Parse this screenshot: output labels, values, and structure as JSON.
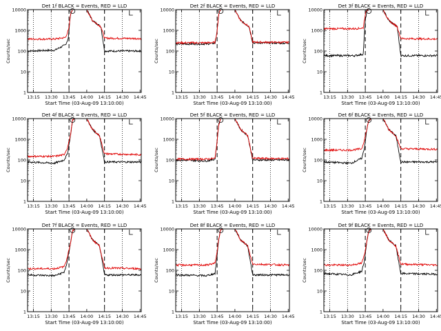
{
  "colors": {
    "events": "#000000",
    "lld": "#e00000",
    "background": "#ffffff"
  },
  "common": {
    "xlabel": "Start Time (03-Aug-09 13:10:00)",
    "ylabel": "Counts/sec",
    "xticks": [
      "13:15",
      "13:30",
      "13:45",
      "14:00",
      "14:15",
      "14:30",
      "14:45"
    ],
    "yticks": [
      "1",
      "10",
      "100",
      "1000",
      "10000"
    ]
  },
  "chart_data": [
    {
      "type": "line",
      "title": "Det 1f BLACK = Events, RED = LLD",
      "xlim": [
        13.167,
        14.767
      ],
      "ylim": [
        1,
        10000
      ],
      "yscale": "log",
      "x_vlines_dotted": [
        13.25,
        13.5,
        14.5
      ],
      "x_vlines_dashed": [
        13.75,
        14.25
      ],
      "series": [
        {
          "name": "Events",
          "color": "black",
          "x": [
            13.17,
            13.55,
            13.7,
            13.74,
            13.75,
            13.77,
            13.8,
            13.83,
            14.0,
            14.08,
            14.2,
            14.25,
            14.76
          ],
          "y": [
            100,
            110,
            200,
            400,
            1000,
            6000,
            10000,
            10000,
            10000,
            3000,
            1500,
            100,
            100
          ]
        },
        {
          "name": "LLD",
          "color": "red",
          "x": [
            13.17,
            13.55,
            13.7,
            13.75,
            13.77,
            13.8,
            13.83,
            14.0,
            14.08,
            14.2,
            14.25,
            14.76
          ],
          "y": [
            380,
            380,
            450,
            1200,
            6000,
            10000,
            10000,
            10000,
            3000,
            1500,
            420,
            400
          ]
        }
      ]
    },
    {
      "type": "line",
      "title": "Det 2f BLACK = Events, RED = LLD",
      "xlim": [
        13.167,
        14.767
      ],
      "ylim": [
        1,
        10000
      ],
      "yscale": "log",
      "x_vlines_dotted": [
        13.25,
        13.5,
        14.5
      ],
      "x_vlines_dashed": [
        13.75,
        14.25
      ],
      "series": [
        {
          "name": "Events",
          "color": "black",
          "x": [
            13.17,
            13.6,
            13.72,
            13.75,
            13.77,
            13.8,
            13.83,
            14.0,
            14.08,
            14.2,
            14.25,
            14.76
          ],
          "y": [
            220,
            220,
            240,
            900,
            6000,
            10000,
            10000,
            10000,
            3000,
            1500,
            250,
            240
          ]
        },
        {
          "name": "LLD",
          "color": "red",
          "x": [
            13.17,
            13.6,
            13.72,
            13.75,
            13.77,
            13.8,
            13.83,
            14.0,
            14.08,
            14.2,
            14.25,
            14.76
          ],
          "y": [
            250,
            250,
            260,
            900,
            6000,
            10000,
            10000,
            10000,
            3000,
            1500,
            270,
            260
          ]
        }
      ]
    },
    {
      "type": "line",
      "title": "Det 3f BLACK = Events, RED = LLD",
      "xlim": [
        13.167,
        14.767
      ],
      "ylim": [
        1,
        10000
      ],
      "yscale": "log",
      "x_vlines_dotted": [
        13.25,
        13.5,
        14.5
      ],
      "x_vlines_dashed": [
        13.75,
        14.25
      ],
      "series": [
        {
          "name": "Events",
          "color": "black",
          "x": [
            13.17,
            13.6,
            13.72,
            13.75,
            13.77,
            13.8,
            13.83,
            14.0,
            14.08,
            14.2,
            14.25,
            14.76
          ],
          "y": [
            60,
            60,
            70,
            3000,
            8000,
            10000,
            10000,
            10000,
            3000,
            1500,
            60,
            60
          ]
        },
        {
          "name": "LLD",
          "color": "red",
          "x": [
            13.17,
            13.6,
            13.72,
            13.75,
            13.77,
            13.8,
            13.83,
            14.0,
            14.08,
            14.2,
            14.25,
            14.76
          ],
          "y": [
            1200,
            1200,
            1300,
            6000,
            9000,
            10000,
            10000,
            10000,
            3000,
            1500,
            400,
            380
          ]
        }
      ]
    },
    {
      "type": "line",
      "title": "Det 4f BLACK = Events, RED = LLD",
      "xlim": [
        13.167,
        14.767
      ],
      "ylim": [
        1,
        10000
      ],
      "yscale": "log",
      "x_vlines_dotted": [
        13.25,
        13.5,
        14.5
      ],
      "x_vlines_dashed": [
        13.75,
        14.25
      ],
      "series": [
        {
          "name": "Events",
          "color": "black",
          "x": [
            13.17,
            13.55,
            13.68,
            13.73,
            13.77,
            13.8,
            13.83,
            14.0,
            14.08,
            14.18,
            14.25,
            14.76
          ],
          "y": [
            80,
            70,
            100,
            200,
            1500,
            8000,
            10000,
            10000,
            3000,
            1500,
            80,
            80
          ]
        },
        {
          "name": "LLD",
          "color": "red",
          "x": [
            13.17,
            13.55,
            13.68,
            13.73,
            13.77,
            13.8,
            13.83,
            14.0,
            14.08,
            14.18,
            14.25,
            14.76
          ],
          "y": [
            150,
            150,
            180,
            400,
            1500,
            8000,
            10000,
            10000,
            3000,
            1500,
            200,
            180
          ]
        }
      ]
    },
    {
      "type": "line",
      "title": "Det 5f BLACK = Events, RED = LLD",
      "xlim": [
        13.167,
        14.767
      ],
      "ylim": [
        1,
        10000
      ],
      "yscale": "log",
      "x_vlines_dotted": [
        13.25,
        13.5,
        14.5
      ],
      "x_vlines_dashed": [
        13.75,
        14.25
      ],
      "series": [
        {
          "name": "Events",
          "color": "black",
          "x": [
            13.17,
            13.6,
            13.72,
            13.75,
            13.77,
            13.8,
            13.83,
            14.0,
            14.08,
            14.18,
            14.25,
            14.76
          ],
          "y": [
            100,
            90,
            110,
            800,
            5000,
            10000,
            10000,
            10000,
            3000,
            1500,
            100,
            100
          ]
        },
        {
          "name": "LLD",
          "color": "red",
          "x": [
            13.17,
            13.6,
            13.72,
            13.75,
            13.77,
            13.8,
            13.83,
            14.0,
            14.08,
            14.18,
            14.25,
            14.76
          ],
          "y": [
            110,
            110,
            120,
            800,
            5000,
            10000,
            10000,
            10000,
            3000,
            1500,
            120,
            115
          ]
        }
      ]
    },
    {
      "type": "line",
      "title": "Det 6f BLACK = Events, RED = LLD",
      "xlim": [
        13.167,
        14.767
      ],
      "ylim": [
        1,
        10000
      ],
      "yscale": "log",
      "x_vlines_dotted": [
        13.25,
        13.5,
        14.5
      ],
      "x_vlines_dashed": [
        13.75,
        14.25
      ],
      "series": [
        {
          "name": "Events",
          "color": "black",
          "x": [
            13.17,
            13.55,
            13.7,
            13.74,
            13.77,
            13.8,
            13.83,
            14.0,
            14.08,
            14.18,
            14.25,
            14.76
          ],
          "y": [
            80,
            70,
            120,
            400,
            3000,
            8000,
            10000,
            10000,
            3000,
            1500,
            80,
            80
          ]
        },
        {
          "name": "LLD",
          "color": "red",
          "x": [
            13.17,
            13.55,
            13.7,
            13.74,
            13.77,
            13.8,
            13.83,
            14.0,
            14.08,
            14.18,
            14.25,
            14.76
          ],
          "y": [
            300,
            300,
            350,
            1000,
            3000,
            8000,
            10000,
            10000,
            3000,
            1500,
            350,
            330
          ]
        }
      ]
    },
    {
      "type": "line",
      "title": "Det 7f BLACK = Events, RED = LLD",
      "xlim": [
        13.167,
        14.767
      ],
      "ylim": [
        1,
        10000
      ],
      "yscale": "log",
      "x_vlines_dotted": [
        13.25,
        13.5,
        14.5
      ],
      "x_vlines_dashed": [
        13.75,
        14.25
      ],
      "series": [
        {
          "name": "Events",
          "color": "black",
          "x": [
            13.17,
            13.55,
            13.68,
            13.72,
            13.77,
            13.8,
            13.83,
            14.0,
            14.08,
            14.18,
            14.25,
            14.76
          ],
          "y": [
            60,
            55,
            80,
            200,
            2000,
            8000,
            10000,
            10000,
            3000,
            1500,
            60,
            60
          ]
        },
        {
          "name": "LLD",
          "color": "red",
          "x": [
            13.17,
            13.55,
            13.68,
            13.72,
            13.77,
            13.8,
            13.83,
            14.0,
            14.08,
            14.18,
            14.25,
            14.76
          ],
          "y": [
            120,
            120,
            150,
            350,
            2000,
            8000,
            10000,
            10000,
            3000,
            1500,
            130,
            120
          ]
        }
      ]
    },
    {
      "type": "line",
      "title": "Det 8f BLACK = Events, RED = LLD",
      "xlim": [
        13.167,
        14.767
      ],
      "ylim": [
        1,
        10000
      ],
      "yscale": "log",
      "x_vlines_dotted": [
        13.25,
        13.5,
        14.5
      ],
      "x_vlines_dashed": [
        13.75,
        14.25
      ],
      "series": [
        {
          "name": "Events",
          "color": "black",
          "x": [
            13.17,
            13.6,
            13.72,
            13.75,
            13.77,
            13.8,
            13.83,
            14.0,
            14.08,
            14.18,
            14.25,
            14.76
          ],
          "y": [
            60,
            55,
            70,
            500,
            3000,
            9000,
            10000,
            10000,
            3000,
            1500,
            60,
            60
          ]
        },
        {
          "name": "LLD",
          "color": "red",
          "x": [
            13.17,
            13.6,
            13.72,
            13.75,
            13.77,
            13.8,
            13.83,
            14.0,
            14.08,
            14.18,
            14.25,
            14.76
          ],
          "y": [
            180,
            180,
            220,
            800,
            3000,
            9000,
            10000,
            10000,
            3000,
            1500,
            200,
            180
          ]
        }
      ]
    },
    {
      "type": "line",
      "title": "Det 9f BLACK = Events, RED = LLD",
      "xlim": [
        13.167,
        14.767
      ],
      "ylim": [
        1,
        10000
      ],
      "yscale": "log",
      "x_vlines_dotted": [
        13.25,
        13.5,
        14.5
      ],
      "x_vlines_dashed": [
        13.75,
        14.25
      ],
      "series": [
        {
          "name": "Events",
          "color": "black",
          "x": [
            13.17,
            13.55,
            13.7,
            13.74,
            13.77,
            13.8,
            13.83,
            14.0,
            14.08,
            14.18,
            14.25,
            14.76
          ],
          "y": [
            70,
            60,
            90,
            300,
            2500,
            8000,
            10000,
            10000,
            3000,
            1500,
            70,
            65
          ]
        },
        {
          "name": "LLD",
          "color": "red",
          "x": [
            13.17,
            13.55,
            13.7,
            13.74,
            13.77,
            13.8,
            13.83,
            14.0,
            14.08,
            14.18,
            14.25,
            14.76
          ],
          "y": [
            180,
            180,
            220,
            600,
            2500,
            8000,
            10000,
            10000,
            3000,
            1500,
            200,
            180
          ]
        }
      ]
    }
  ]
}
